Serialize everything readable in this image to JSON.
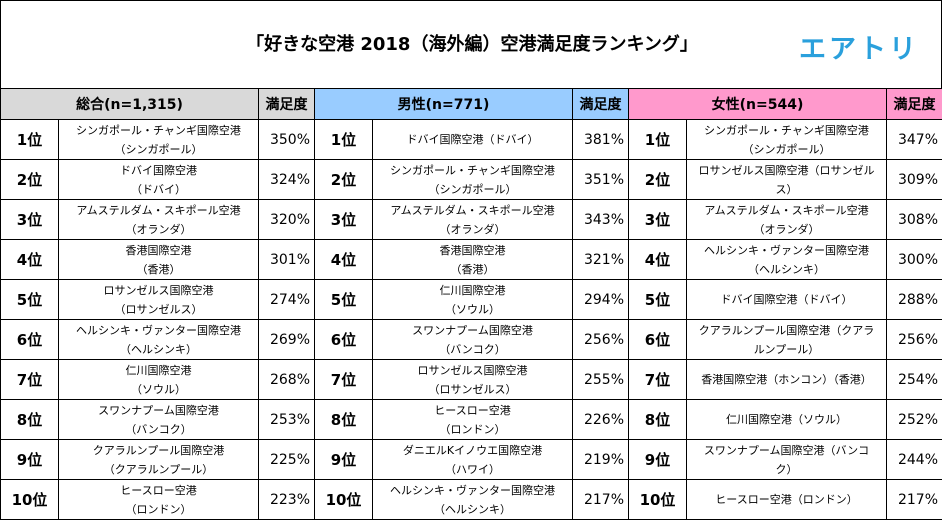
{
  "title": "「好きな空港 2018（海外編）空港満足度ランキング」",
  "logo": "エアトリ",
  "colors": {
    "overall": "#d9d9d9",
    "male": "#99ccff",
    "female": "#ff99cc",
    "logo": "#2aa0dc"
  },
  "groups": [
    {
      "header": "総合(n=1,315)",
      "score_header": "満足度",
      "rows": [
        {
          "rank": "1位",
          "name": "シンガポール・チャンギ国際空港\n（シンガポール）",
          "pct": "350%"
        },
        {
          "rank": "2位",
          "name": "ドバイ国際空港\n（ドバイ）",
          "pct": "324%"
        },
        {
          "rank": "3位",
          "name": "アムステルダム・スキポール空港\n（オランダ）",
          "pct": "320%"
        },
        {
          "rank": "4位",
          "name": "香港国際空港\n（香港）",
          "pct": "301%"
        },
        {
          "rank": "5位",
          "name": "ロサンゼルス国際空港\n（ロサンゼルス）",
          "pct": "274%"
        },
        {
          "rank": "6位",
          "name": "ヘルシンキ・ヴァンター国際空港\n（ヘルシンキ）",
          "pct": "269%"
        },
        {
          "rank": "7位",
          "name": "仁川国際空港\n（ソウル）",
          "pct": "268%"
        },
        {
          "rank": "8位",
          "name": "スワンナプーム国際空港\n（バンコク）",
          "pct": "253%"
        },
        {
          "rank": "9位",
          "name": "クアラルンプール国際空港\n（クアラルンプール）",
          "pct": "225%"
        },
        {
          "rank": "10位",
          "name": "ヒースロー空港\n（ロンドン）",
          "pct": "223%"
        }
      ]
    },
    {
      "header": "男性(n=771)",
      "score_header": "満足度",
      "rows": [
        {
          "rank": "1位",
          "name": "ドバイ国際空港（ドバイ）",
          "pct": "381%"
        },
        {
          "rank": "2位",
          "name": "シンガポール・チャンギ国際空港\n（シンガポール）",
          "pct": "351%"
        },
        {
          "rank": "3位",
          "name": "アムステルダム・スキポール空港\n（オランダ）",
          "pct": "343%"
        },
        {
          "rank": "4位",
          "name": "香港国際空港\n（香港）",
          "pct": "321%"
        },
        {
          "rank": "5位",
          "name": "仁川国際空港\n（ソウル）",
          "pct": "294%"
        },
        {
          "rank": "6位",
          "name": "スワンナプーム国際空港\n（バンコク）",
          "pct": "256%"
        },
        {
          "rank": "7位",
          "name": "ロサンゼルス国際空港\n（ロサンゼルス）",
          "pct": "255%"
        },
        {
          "rank": "8位",
          "name": "ヒースロー空港\n（ロンドン）",
          "pct": "226%"
        },
        {
          "rank": "9位",
          "name": "ダニエルKイノウエ国際空港\n（ハワイ）",
          "pct": "219%"
        },
        {
          "rank": "10位",
          "name": "ヘルシンキ・ヴァンター国際空港\n（ヘルシンキ）",
          "pct": "217%"
        }
      ]
    },
    {
      "header": "女性(n=544)",
      "score_header": "満足度",
      "rows": [
        {
          "rank": "1位",
          "name": "シンガポール・チャンギ国際空港\n（シンガポール）",
          "pct": "347%"
        },
        {
          "rank": "2位",
          "name": "ロサンゼルス国際空港（ロサンゼル\nス）",
          "pct": "309%"
        },
        {
          "rank": "3位",
          "name": "アムステルダム・スキポール空港\n（オランダ）",
          "pct": "308%"
        },
        {
          "rank": "4位",
          "name": "ヘルシンキ・ヴァンター国際空港\n（ヘルシンキ）",
          "pct": "300%"
        },
        {
          "rank": "5位",
          "name": "ドバイ国際空港（ドバイ）",
          "pct": "288%"
        },
        {
          "rank": "6位",
          "name": "クアラルンプール国際空港（クアラ\nルンプール）",
          "pct": "256%"
        },
        {
          "rank": "7位",
          "name": "香港国際空港（ホンコン）（香港）",
          "pct": "254%"
        },
        {
          "rank": "8位",
          "name": "仁川国際空港（ソウル）",
          "pct": "252%"
        },
        {
          "rank": "9位",
          "name": "スワンナプーム国際空港（バンコ\nク）",
          "pct": "244%"
        },
        {
          "rank": "10位",
          "name": "ヒースロー空港（ロンドン）",
          "pct": "217%"
        }
      ]
    }
  ]
}
